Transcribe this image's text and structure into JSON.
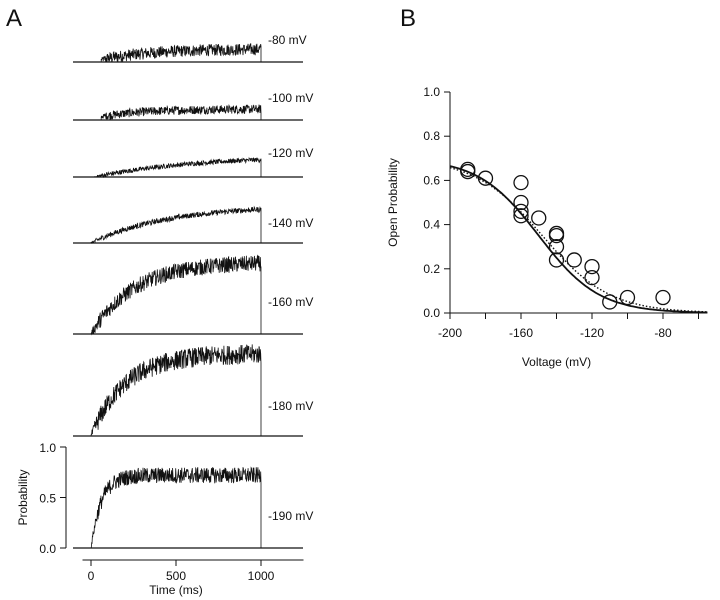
{
  "panel_labels": {
    "a": "A",
    "b": "B"
  },
  "chart_data": [
    {
      "type": "line",
      "title": "Panel A: Open probability traces",
      "xlabel": "Time (ms)",
      "ylabel": "Probability",
      "x_ticks": [
        "0",
        "500",
        "1000"
      ],
      "y_ticks": [
        "0.0",
        "0.5",
        "1.0"
      ],
      "xlim": [
        -50,
        1250
      ],
      "ylim": [
        0,
        1
      ],
      "pulse_end_ms": 1000,
      "traces": [
        {
          "label": "-80 mV",
          "onset_ms": 60,
          "level_start": 0.02,
          "level_end": 0.11,
          "tau_ms": 300,
          "noise": 0.05
        },
        {
          "label": "-100 mV",
          "onset_ms": 60,
          "level_start": 0.03,
          "level_end": 0.1,
          "tau_ms": 250,
          "noise": 0.04
        },
        {
          "label": "-120 mV",
          "onset_ms": 20,
          "level_start": 0.0,
          "level_end": 0.27,
          "tau_ms": 600,
          "noise": 0.03
        },
        {
          "label": "-140 mV",
          "onset_ms": 0,
          "level_start": 0.0,
          "level_end": 0.42,
          "tau_ms": 450,
          "noise": 0.03
        },
        {
          "label": "-160 mV",
          "onset_ms": 0,
          "level_start": 0.0,
          "level_end": 0.8,
          "tau_ms": 250,
          "noise": 0.09
        },
        {
          "label": "-180 mV",
          "onset_ms": 0,
          "level_start": 0.0,
          "level_end": 0.75,
          "tau_ms": 200,
          "noise": 0.09
        },
        {
          "label": "-190 mV",
          "onset_ms": 0,
          "level_start": 0.0,
          "level_end": 0.72,
          "tau_ms": 60,
          "noise": 0.08
        }
      ]
    },
    {
      "type": "scatter",
      "title": "Panel B: Open probability vs voltage",
      "xlabel": "Voltage (mV)",
      "ylabel": "Open Probability",
      "xlim": [
        -200,
        -55
      ],
      "ylim": [
        0,
        1
      ],
      "x_ticks": [
        -200,
        -160,
        -120,
        -80
      ],
      "y_ticks": [
        "0.0",
        "0.2",
        "0.4",
        "0.6",
        "0.8",
        "1.0"
      ],
      "x_tick_labels": [
        "-200",
        "-160",
        "-120",
        "-80"
      ],
      "points": [
        {
          "x": -190,
          "y": 0.65
        },
        {
          "x": -190,
          "y": 0.64
        },
        {
          "x": -180,
          "y": 0.61
        },
        {
          "x": -160,
          "y": 0.59
        },
        {
          "x": -160,
          "y": 0.5
        },
        {
          "x": -160,
          "y": 0.46
        },
        {
          "x": -160,
          "y": 0.44
        },
        {
          "x": -150,
          "y": 0.43
        },
        {
          "x": -140,
          "y": 0.36
        },
        {
          "x": -140,
          "y": 0.35
        },
        {
          "x": -140,
          "y": 0.3
        },
        {
          "x": -140,
          "y": 0.24
        },
        {
          "x": -130,
          "y": 0.24
        },
        {
          "x": -120,
          "y": 0.21
        },
        {
          "x": -120,
          "y": 0.16
        },
        {
          "x": -110,
          "y": 0.05
        },
        {
          "x": -100,
          "y": 0.07
        },
        {
          "x": -80,
          "y": 0.07
        }
      ],
      "fits": [
        {
          "name": "solid-fit",
          "style": "solid",
          "pmax": 0.7,
          "v_half": -150,
          "slope": 17
        },
        {
          "name": "dotted-fit",
          "style": "dotted",
          "pmax": 0.7,
          "v_half": -148,
          "slope": 19
        }
      ]
    }
  ]
}
